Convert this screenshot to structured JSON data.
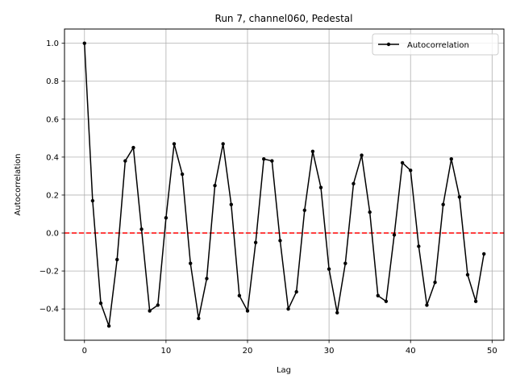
{
  "chart_data": {
    "type": "line",
    "title": "Run 7, channel060, Pedestal",
    "xlabel": "Lag",
    "ylabel": "Autocorrelation",
    "xlim": [
      -2.45,
      51.45
    ],
    "ylim": [
      -0.565,
      1.075
    ],
    "xticks": [
      0,
      10,
      20,
      30,
      40,
      50
    ],
    "yticks": [
      -0.4,
      -0.2,
      0.0,
      0.2,
      0.4,
      0.6,
      0.8,
      1.0
    ],
    "xtick_labels": [
      "0",
      "10",
      "20",
      "30",
      "40",
      "50"
    ],
    "ytick_labels": [
      "−0.4",
      "−0.2",
      "0.0",
      "0.2",
      "0.4",
      "0.6",
      "0.8",
      "1.0"
    ],
    "grid": true,
    "legend_position": "upper-right",
    "reference_line": {
      "y": 0,
      "style": "dashed",
      "color": "#ff0000"
    },
    "series": [
      {
        "name": "Autocorrelation",
        "color": "#000000",
        "marker": "dot",
        "x": [
          0,
          1,
          2,
          3,
          4,
          5,
          6,
          7,
          8,
          9,
          10,
          11,
          12,
          13,
          14,
          15,
          16,
          17,
          18,
          19,
          20,
          21,
          22,
          23,
          24,
          25,
          26,
          27,
          28,
          29,
          30,
          31,
          32,
          33,
          34,
          35,
          36,
          37,
          38,
          39,
          40,
          41,
          42,
          43,
          44,
          45,
          46,
          47,
          48,
          49
        ],
        "values": [
          1.0,
          0.17,
          -0.37,
          -0.49,
          -0.14,
          0.38,
          0.45,
          0.02,
          -0.41,
          -0.38,
          0.08,
          0.47,
          0.31,
          -0.16,
          -0.45,
          -0.24,
          0.25,
          0.47,
          0.15,
          -0.33,
          -0.41,
          -0.05,
          0.39,
          0.38,
          -0.04,
          -0.4,
          -0.31,
          0.12,
          0.43,
          0.24,
          -0.19,
          -0.42,
          -0.16,
          0.26,
          0.41,
          0.11,
          -0.33,
          -0.36,
          -0.01,
          0.37,
          0.33,
          -0.07,
          -0.38,
          -0.26,
          0.15,
          0.39,
          0.19,
          -0.22,
          -0.36,
          -0.11
        ]
      }
    ]
  }
}
